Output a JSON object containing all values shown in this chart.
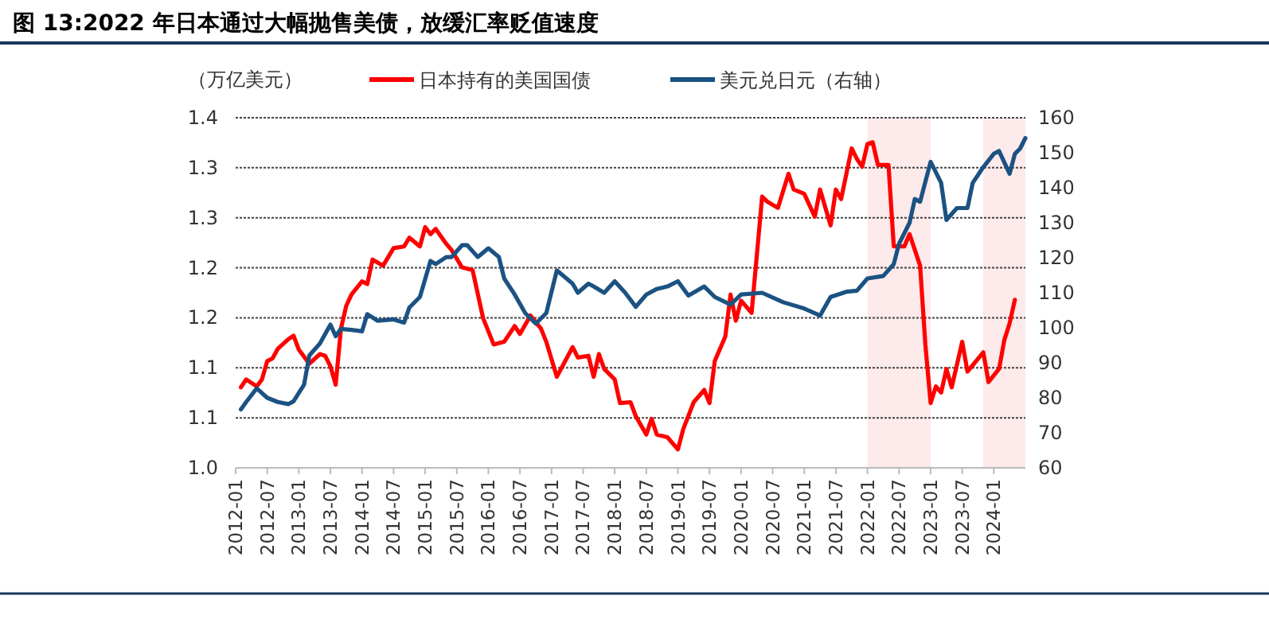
{
  "chart_data": {
    "type": "line",
    "title": "图 13:2022 年日本通过大幅抛售美债，放缓汇率贬值速度",
    "ylabel": "（万亿美元）",
    "xlim": [
      "2012-01",
      "2024-07"
    ],
    "xticks": [
      "2012-01",
      "2012-07",
      "2013-01",
      "2013-07",
      "2014-01",
      "2014-07",
      "2015-01",
      "2015-07",
      "2016-01",
      "2016-07",
      "2017-01",
      "2017-07",
      "2018-01",
      "2018-07",
      "2019-01",
      "2019-07",
      "2020-01",
      "2020-07",
      "2021-01",
      "2021-07",
      "2022-01",
      "2022-07",
      "2023-01",
      "2023-07",
      "2024-01"
    ],
    "ylim": [
      1.0,
      1.4
    ],
    "yticks": [
      {
        "value": 1,
        "label": "1.0"
      },
      {
        "value": 1.0571,
        "label": "1.1"
      },
      {
        "value": 1.1143,
        "label": "1.1"
      },
      {
        "value": 1.1714,
        "label": "1.2"
      },
      {
        "value": 1.2286,
        "label": "1.2"
      },
      {
        "value": 1.2857,
        "label": "1.3"
      },
      {
        "value": 1.3429,
        "label": "1.3"
      },
      1.4
    ],
    "y2lim": [
      60,
      160
    ],
    "y2ticks": [
      60,
      70,
      80,
      90,
      100,
      110,
      120,
      130,
      140,
      150,
      160
    ],
    "grid": "y",
    "legend": "top",
    "bands": [
      {
        "axis": "x",
        "from": "2022-01",
        "to": "2023-01",
        "color": "#fdeaea"
      },
      {
        "axis": "x",
        "from": "2023-11",
        "to": "2024-07",
        "color": "#fdeaea"
      }
    ],
    "series": [
      {
        "name": "日本持有的美国国债",
        "color": "#ff0000",
        "x": [
          "2012-02",
          "2012-03",
          "2012-05",
          "2012-06",
          "2012-07",
          "2012-08",
          "2012-09",
          "2012-11",
          "2012-12",
          "2013-01",
          "2013-03",
          "2013-05",
          "2013-06",
          "2013-07",
          "2013-08",
          "2013-09",
          "2013-10",
          "2013-11",
          "2014-01",
          "2014-02",
          "2014-03",
          "2014-05",
          "2014-07",
          "2014-09",
          "2014-10",
          "2014-12",
          "2015-01",
          "2015-02",
          "2015-03",
          "2015-05",
          "2015-06",
          "2015-08",
          "2015-10",
          "2015-12",
          "2016-02",
          "2016-04",
          "2016-06",
          "2016-07",
          "2016-09",
          "2016-11",
          "2016-12",
          "2017-02",
          "2017-05",
          "2017-06",
          "2017-08",
          "2017-09",
          "2017-10",
          "2017-11",
          "2018-01",
          "2018-02",
          "2018-04",
          "2018-05",
          "2018-07",
          "2018-08",
          "2018-09",
          "2018-11",
          "2019-01",
          "2019-02",
          "2019-04",
          "2019-06",
          "2019-07",
          "2019-08",
          "2019-10",
          "2019-11",
          "2019-12",
          "2020-01",
          "2020-03",
          "2020-05",
          "2020-06",
          "2020-08",
          "2020-10",
          "2020-11",
          "2021-01",
          "2021-03",
          "2021-04",
          "2021-06",
          "2021-07",
          "2021-08",
          "2021-10",
          "2021-11",
          "2021-12",
          "2022-01",
          "2022-02",
          "2022-03",
          "2022-05",
          "2022-06",
          "2022-08",
          "2022-09",
          "2022-11",
          "2022-12",
          "2023-01",
          "2023-02",
          "2023-03",
          "2023-04",
          "2023-05",
          "2023-07",
          "2023-08",
          "2023-11",
          "2023-12",
          "2024-02",
          "2024-03",
          "2024-04",
          "2024-05"
        ],
        "values": [
          1.092,
          1.101,
          1.093,
          1.101,
          1.122,
          1.125,
          1.136,
          1.147,
          1.151,
          1.135,
          1.119,
          1.13,
          1.128,
          1.116,
          1.095,
          1.159,
          1.185,
          1.198,
          1.213,
          1.21,
          1.238,
          1.231,
          1.251,
          1.253,
          1.263,
          1.253,
          1.275,
          1.267,
          1.273,
          1.256,
          1.249,
          1.229,
          1.226,
          1.171,
          1.141,
          1.144,
          1.162,
          1.153,
          1.174,
          1.159,
          1.144,
          1.104,
          1.138,
          1.126,
          1.128,
          1.104,
          1.13,
          1.113,
          1.101,
          1.074,
          1.075,
          1.059,
          1.038,
          1.056,
          1.038,
          1.035,
          1.021,
          1.044,
          1.075,
          1.089,
          1.074,
          1.122,
          1.15,
          1.198,
          1.168,
          1.191,
          1.177,
          1.31,
          1.304,
          1.297,
          1.336,
          1.318,
          1.313,
          1.287,
          1.318,
          1.277,
          1.318,
          1.307,
          1.365,
          1.353,
          1.344,
          1.37,
          1.372,
          1.346,
          1.346,
          1.253,
          1.253,
          1.267,
          1.231,
          1.141,
          1.074,
          1.093,
          1.086,
          1.113,
          1.092,
          1.144,
          1.11,
          1.132,
          1.098,
          1.113,
          1.146,
          1.165,
          1.192
        ]
      },
      {
        "name": "美元兑日元（右轴）",
        "color": "#1b5282",
        "axis": "y2",
        "x": [
          "2012-02",
          "2012-03",
          "2012-05",
          "2012-07",
          "2012-09",
          "2012-11",
          "2012-12",
          "2013-02",
          "2013-03",
          "2013-05",
          "2013-07",
          "2013-08",
          "2013-09",
          "2013-11",
          "2014-01",
          "2014-02",
          "2014-04",
          "2014-07",
          "2014-09",
          "2014-10",
          "2014-12",
          "2015-02",
          "2015-03",
          "2015-05",
          "2015-06",
          "2015-08",
          "2015-09",
          "2015-11",
          "2016-01",
          "2016-03",
          "2016-04",
          "2016-06",
          "2016-08",
          "2016-10",
          "2016-12",
          "2017-02",
          "2017-05",
          "2017-06",
          "2017-08",
          "2017-09",
          "2017-11",
          "2018-01",
          "2018-03",
          "2018-05",
          "2018-07",
          "2018-09",
          "2018-11",
          "2019-01",
          "2019-03",
          "2019-06",
          "2019-08",
          "2019-11",
          "2020-01",
          "2020-05",
          "2020-09",
          "2021-01",
          "2021-04",
          "2021-06",
          "2021-09",
          "2021-11",
          "2022-01",
          "2022-04",
          "2022-06",
          "2022-07",
          "2022-09",
          "2022-10",
          "2022-11",
          "2023-01",
          "2023-03",
          "2023-04",
          "2023-06",
          "2023-08",
          "2023-09",
          "2023-11",
          "2024-01",
          "2024-02",
          "2024-04",
          "2024-05",
          "2024-06",
          "2024-07"
        ],
        "values": [
          76.7,
          78.8,
          82.7,
          80.0,
          78.8,
          78.2,
          79.0,
          83.8,
          92.1,
          95.5,
          100.9,
          97.6,
          99.7,
          99.4,
          99.0,
          103.9,
          102.0,
          102.4,
          101.5,
          105.8,
          108.8,
          119.1,
          118.2,
          120.2,
          120.2,
          123.6,
          123.6,
          120.2,
          122.7,
          120.2,
          114.1,
          109.5,
          104.2,
          101.2,
          104.2,
          116.4,
          112.6,
          110.0,
          112.6,
          111.8,
          110.0,
          113.3,
          110.0,
          106.0,
          109.5,
          111.1,
          111.8,
          113.3,
          109.2,
          111.8,
          108.8,
          106.6,
          109.5,
          110.0,
          107.3,
          105.5,
          103.5,
          108.8,
          110.3,
          110.6,
          114.1,
          114.8,
          118.2,
          124.0,
          130.0,
          136.8,
          136.0,
          147.4,
          141.4,
          130.8,
          134.2,
          134.2,
          141.4,
          145.9,
          149.7,
          150.5,
          144.0,
          149.7,
          151.2,
          154.2
        ]
      }
    ]
  }
}
